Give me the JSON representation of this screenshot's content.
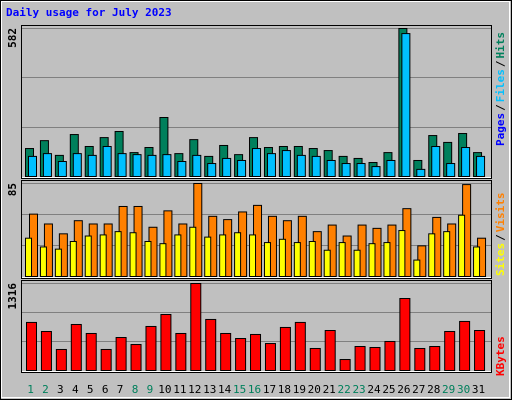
{
  "title": "Daily usage for July 2023",
  "legend_separator": "/",
  "chart_data": [
    {
      "type": "bar",
      "ylim": [
        0,
        582
      ],
      "yticks": [
        582
      ],
      "series": [
        {
          "name": "Pages",
          "color": "#0000FF",
          "values": [
            null,
            null,
            null,
            null,
            null,
            null,
            null,
            null,
            null,
            null,
            null,
            null,
            null,
            null,
            null,
            null,
            null,
            null,
            null,
            null,
            null,
            null,
            null,
            null,
            null,
            null,
            null,
            null,
            null,
            null,
            null
          ]
        },
        {
          "name": "Files",
          "color": "#00C0FF",
          "values": [
            79,
            90,
            59,
            90,
            83,
            118,
            90,
            86,
            83,
            86,
            59,
            83,
            51,
            71,
            63,
            110,
            90,
            102,
            83,
            79,
            63,
            51,
            51,
            39,
            63,
            562,
            28,
            118,
            51,
            114,
            79
          ]
        },
        {
          "name": "Hits",
          "color": "#00805C",
          "values": [
            110,
            141,
            83,
            165,
            118,
            153,
            177,
            94,
            114,
            232,
            90,
            145,
            79,
            122,
            86,
            153,
            114,
            118,
            118,
            110,
            102,
            79,
            71,
            55,
            94,
            582,
            63,
            161,
            134,
            169,
            94
          ]
        }
      ]
    },
    {
      "type": "bar",
      "ylim": [
        0,
        85
      ],
      "yticks": [
        85
      ],
      "series": [
        {
          "name": "Sites",
          "color": "#FFFF00",
          "values": [
            35,
            27,
            25,
            32,
            37,
            38,
            41,
            40,
            32,
            30,
            38,
            45,
            36,
            38,
            40,
            38,
            31,
            34,
            31,
            32,
            24,
            31,
            24,
            30,
            31,
            42,
            15,
            39,
            41,
            56,
            27
          ]
        },
        {
          "name": "Visits",
          "color": "#FF8000",
          "values": [
            57,
            48,
            39,
            51,
            48,
            48,
            64,
            64,
            45,
            60,
            48,
            85,
            55,
            52,
            59,
            65,
            55,
            51,
            55,
            41,
            47,
            37,
            47,
            44,
            47,
            62,
            28,
            54,
            48,
            84,
            35
          ]
        }
      ]
    },
    {
      "type": "bar",
      "ylim": [
        0,
        1316
      ],
      "yticks": [
        1316
      ],
      "categories": [
        "1",
        "2",
        "3",
        "4",
        "5",
        "6",
        "7",
        "8",
        "9",
        "10",
        "11",
        "12",
        "13",
        "14",
        "15",
        "16",
        "17",
        "18",
        "19",
        "20",
        "21",
        "22",
        "23",
        "24",
        "25",
        "26",
        "27",
        "28",
        "29",
        "30",
        "31"
      ],
      "category_colors": [
        "#00805C",
        "#00805C",
        "#000000",
        "#000000",
        "#000000",
        "#000000",
        "#000000",
        "#00805C",
        "#00805C",
        "#000000",
        "#000000",
        "#000000",
        "#000000",
        "#000000",
        "#00805C",
        "#00805C",
        "#000000",
        "#000000",
        "#000000",
        "#000000",
        "#000000",
        "#00805C",
        "#00805C",
        "#000000",
        "#000000",
        "#000000",
        "#000000",
        "#000000",
        "#00805C",
        "#00805C",
        "#000000"
      ],
      "series": [
        {
          "name": "KBytes",
          "color": "#FF0000",
          "values": [
            727,
            590,
            318,
            696,
            560,
            318,
            499,
            393,
            666,
            847,
            560,
            1316,
            772,
            560,
            484,
            545,
            408,
            651,
            727,
            333,
            605,
            166,
            363,
            348,
            439,
            1089,
            333,
            363,
            590,
            742,
            605
          ]
        }
      ]
    }
  ]
}
